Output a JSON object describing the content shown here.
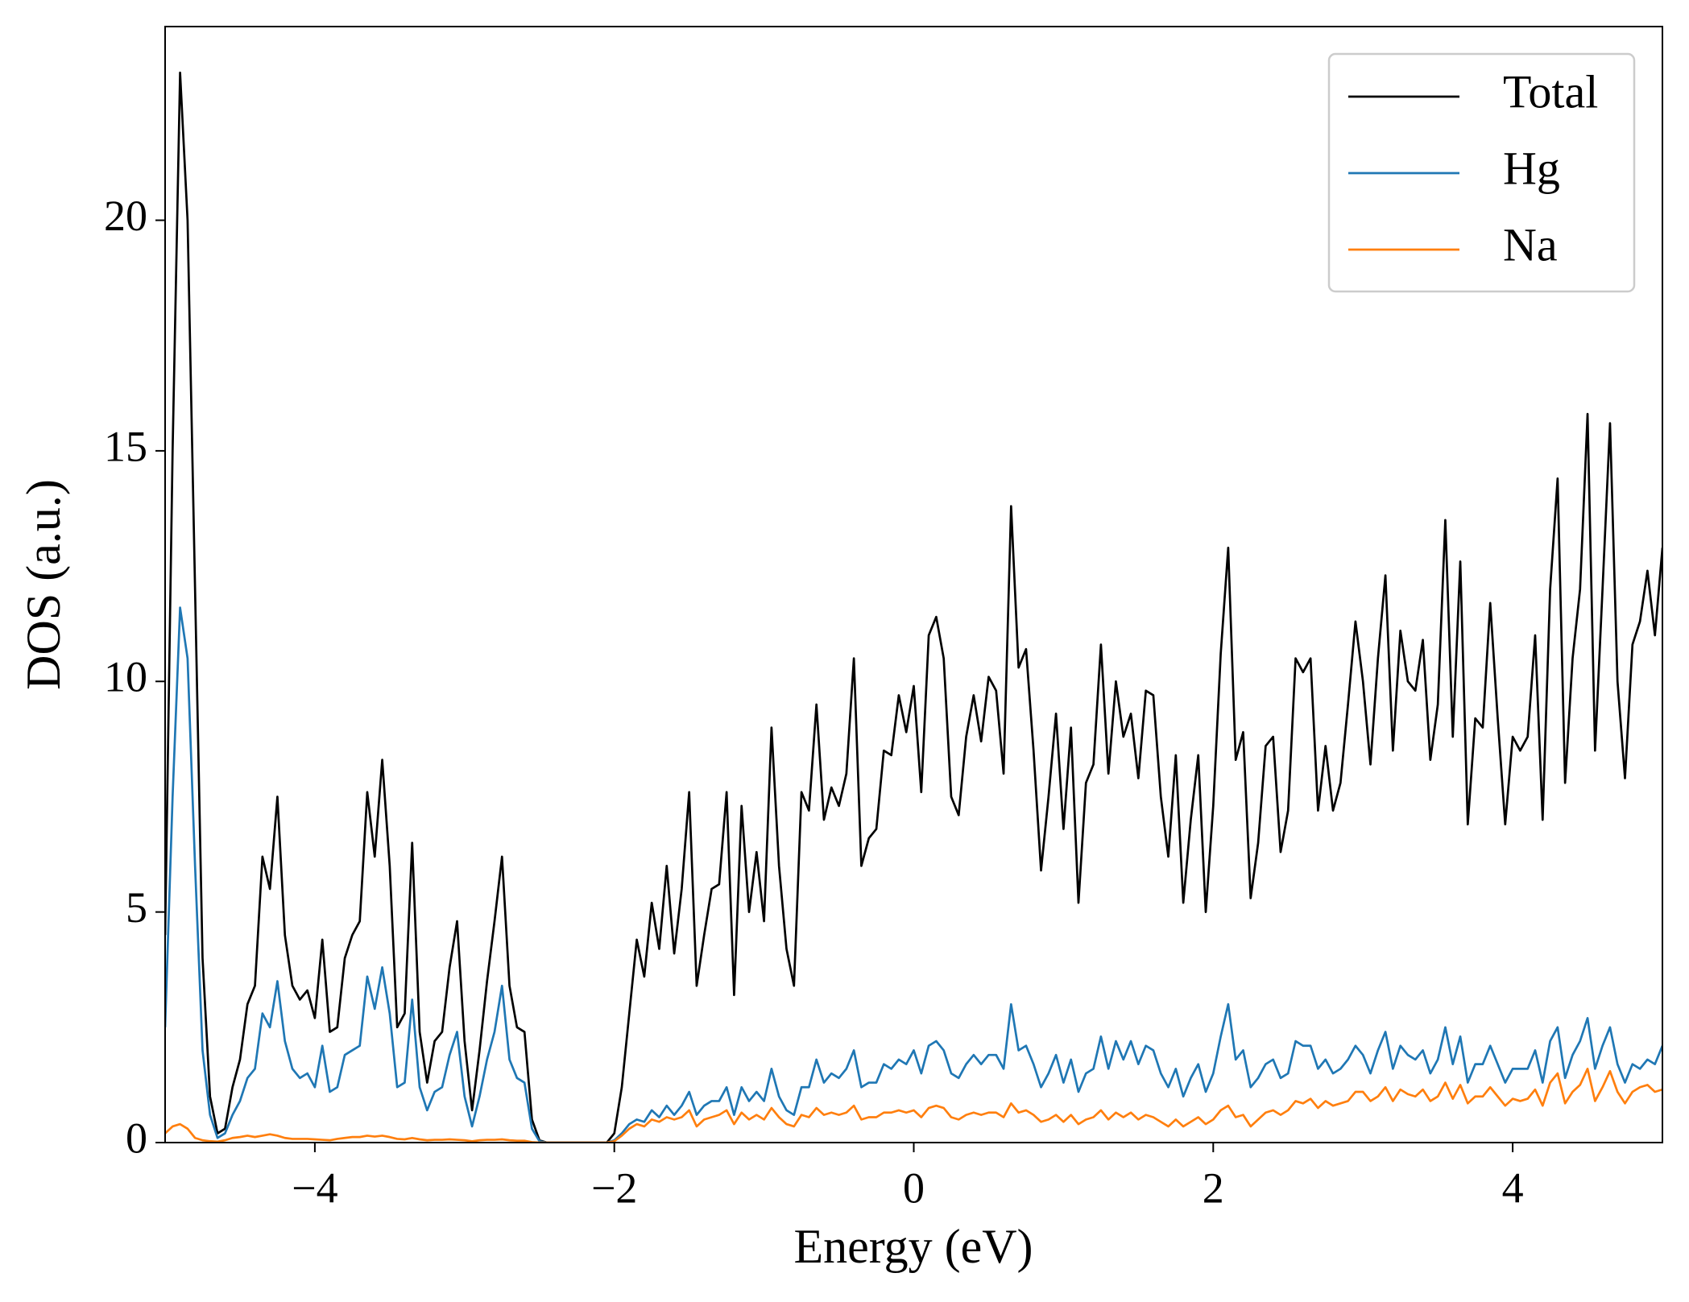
{
  "chart_data": {
    "type": "line",
    "xlabel": "Energy (eV)",
    "ylabel": "DOS (a.u.)",
    "xlim": [
      -5,
      5
    ],
    "ylim": [
      0,
      24.2
    ],
    "xticks": [
      {
        "value": -4,
        "label": "−4"
      },
      {
        "value": -2,
        "label": "−2"
      },
      0,
      2,
      4
    ],
    "yticks": [
      0,
      5,
      10,
      15,
      20
    ],
    "legend": "upper right",
    "x": [
      -5,
      -4.95,
      -4.9,
      -4.85,
      -4.8,
      -4.75,
      -4.7,
      -4.65,
      -4.6,
      -4.55,
      -4.5,
      -4.45,
      -4.4,
      -4.35,
      -4.3,
      -4.25,
      -4.2,
      -4.15,
      -4.1,
      -4.05,
      -4,
      -3.95,
      -3.9,
      -3.85,
      -3.8,
      -3.75,
      -3.7,
      -3.65,
      -3.6,
      -3.55,
      -3.5,
      -3.45,
      -3.4,
      -3.35,
      -3.3,
      -3.25,
      -3.2,
      -3.15,
      -3.1,
      -3.05,
      -3,
      -2.95,
      -2.9,
      -2.85,
      -2.8,
      -2.75,
      -2.7,
      -2.65,
      -2.6,
      -2.55,
      -2.5,
      -2.45,
      -2.4,
      -2.35,
      -2.3,
      -2.25,
      -2.2,
      -2.15,
      -2.1,
      -2.05,
      -2,
      -1.95,
      -1.9,
      -1.85,
      -1.8,
      -1.75,
      -1.7,
      -1.65,
      -1.6,
      -1.55,
      -1.5,
      -1.45,
      -1.4,
      -1.35,
      -1.3,
      -1.25,
      -1.2,
      -1.15,
      -1.1,
      -1.05,
      -1,
      -0.95,
      -0.9,
      -0.85,
      -0.8,
      -0.75,
      -0.7,
      -0.65,
      -0.6,
      -0.55,
      -0.5,
      -0.45,
      -0.4,
      -0.35,
      -0.3,
      -0.25,
      -0.2,
      -0.15,
      -0.1,
      -0.05,
      0,
      0.05,
      0.1,
      0.15,
      0.2,
      0.25,
      0.3,
      0.35,
      0.4,
      0.45,
      0.5,
      0.55,
      0.6,
      0.65,
      0.7,
      0.75,
      0.8,
      0.85,
      0.9,
      0.95,
      1,
      1.05,
      1.1,
      1.15,
      1.2,
      1.25,
      1.3,
      1.35,
      1.4,
      1.45,
      1.5,
      1.55,
      1.6,
      1.65,
      1.7,
      1.75,
      1.8,
      1.85,
      1.9,
      1.95,
      2,
      2.05,
      2.1,
      2.15,
      2.2,
      2.25,
      2.3,
      2.35,
      2.4,
      2.45,
      2.5,
      2.55,
      2.6,
      2.65,
      2.7,
      2.75,
      2.8,
      2.85,
      2.9,
      2.95,
      3,
      3.05,
      3.1,
      3.15,
      3.2,
      3.25,
      3.3,
      3.35,
      3.4,
      3.45,
      3.5,
      3.55,
      3.6,
      3.65,
      3.7,
      3.75,
      3.8,
      3.85,
      3.9,
      3.95,
      4,
      4.05,
      4.1,
      4.15,
      4.2,
      4.25,
      4.3,
      4.35,
      4.4,
      4.45,
      4.5,
      4.55,
      4.6,
      4.65,
      4.7,
      4.75,
      4.8,
      4.85,
      4.9,
      4.95,
      5
    ],
    "series": [
      {
        "name": "Total",
        "color": "#000000",
        "values": [
          4.5,
          15,
          23.2,
          20,
          12,
          4,
          1.0,
          0.2,
          0.3,
          1.2,
          1.8,
          3.0,
          3.4,
          6.2,
          5.5,
          7.5,
          4.5,
          3.4,
          3.1,
          3.3,
          2.7,
          4.4,
          2.4,
          2.5,
          4.0,
          4.5,
          4.8,
          7.6,
          6.2,
          8.3,
          6.0,
          2.5,
          2.8,
          6.5,
          2.4,
          1.3,
          2.2,
          2.4,
          3.8,
          4.8,
          2.2,
          0.7,
          2.0,
          3.5,
          4.8,
          6.2,
          3.4,
          2.5,
          2.4,
          0.5,
          0.05,
          0,
          0,
          0,
          0,
          0,
          0,
          0,
          0,
          0,
          0.2,
          1.2,
          2.8,
          4.4,
          3.6,
          5.2,
          4.2,
          6.0,
          4.1,
          5.5,
          7.6,
          3.4,
          4.5,
          5.5,
          5.6,
          7.6,
          3.2,
          7.3,
          5.0,
          6.3,
          4.8,
          9.0,
          6.0,
          4.2,
          3.4,
          7.6,
          7.2,
          9.5,
          7.0,
          7.7,
          7.3,
          8.0,
          10.5,
          6.0,
          6.6,
          6.8,
          8.5,
          8.4,
          9.7,
          8.9,
          9.9,
          7.6,
          11.0,
          11.4,
          10.5,
          7.5,
          7.1,
          8.8,
          9.7,
          8.7,
          10.1,
          9.8,
          8.0,
          13.8,
          10.3,
          10.7,
          8.5,
          5.9,
          7.5,
          9.3,
          6.8,
          9.0,
          5.2,
          7.8,
          8.2,
          10.8,
          8.0,
          10.0,
          8.8,
          9.3,
          7.9,
          9.8,
          9.7,
          7.5,
          6.2,
          8.4,
          5.2,
          7.0,
          8.4,
          5.0,
          7.3,
          10.6,
          12.9,
          8.3,
          8.9,
          5.3,
          6.5,
          8.6,
          8.8,
          6.3,
          7.2,
          10.5,
          10.2,
          10.5,
          7.2,
          8.6,
          7.2,
          7.8,
          9.5,
          11.3,
          10.0,
          8.2,
          10.5,
          12.3,
          8.5,
          11.1,
          10.0,
          9.8,
          10.9,
          8.3,
          9.5,
          13.5,
          8.8,
          12.6,
          6.9,
          9.2,
          9.0,
          11.7,
          9.2,
          6.9,
          8.8,
          8.5,
          8.8,
          11.0,
          7.0,
          12.0,
          14.4,
          7.8,
          10.5,
          12.0,
          15.8,
          8.5,
          12.0,
          15.6,
          10.0,
          7.9,
          10.8,
          11.3,
          12.4,
          11.0,
          12.9
        ]
      },
      {
        "name": "Hg",
        "color": "#1f77b4",
        "values": [
          2.5,
          7.5,
          11.6,
          10.5,
          6.0,
          2.0,
          0.6,
          0.1,
          0.2,
          0.6,
          0.9,
          1.4,
          1.6,
          2.8,
          2.5,
          3.5,
          2.2,
          1.6,
          1.4,
          1.5,
          1.2,
          2.1,
          1.1,
          1.2,
          1.9,
          2.0,
          2.1,
          3.6,
          2.9,
          3.8,
          2.8,
          1.2,
          1.3,
          3.1,
          1.2,
          0.7,
          1.1,
          1.2,
          1.9,
          2.4,
          1.0,
          0.35,
          1.0,
          1.8,
          2.4,
          3.4,
          1.8,
          1.4,
          1.3,
          0.3,
          0.03,
          0,
          0,
          0,
          0,
          0,
          0,
          0,
          0,
          0,
          0.05,
          0.2,
          0.4,
          0.5,
          0.45,
          0.7,
          0.55,
          0.8,
          0.6,
          0.8,
          1.1,
          0.6,
          0.8,
          0.9,
          0.9,
          1.2,
          0.6,
          1.2,
          0.9,
          1.1,
          0.9,
          1.6,
          1.0,
          0.7,
          0.6,
          1.2,
          1.2,
          1.8,
          1.3,
          1.5,
          1.4,
          1.6,
          2.0,
          1.2,
          1.3,
          1.3,
          1.7,
          1.6,
          1.8,
          1.7,
          2.0,
          1.5,
          2.1,
          2.2,
          2.0,
          1.5,
          1.4,
          1.7,
          1.9,
          1.7,
          1.9,
          1.9,
          1.6,
          3.0,
          2.0,
          2.1,
          1.7,
          1.2,
          1.5,
          1.9,
          1.3,
          1.8,
          1.1,
          1.5,
          1.6,
          2.3,
          1.6,
          2.2,
          1.8,
          2.2,
          1.7,
          2.1,
          2.0,
          1.5,
          1.2,
          1.6,
          1.0,
          1.4,
          1.7,
          1.1,
          1.5,
          2.3,
          3.0,
          1.8,
          2.0,
          1.2,
          1.4,
          1.7,
          1.8,
          1.4,
          1.5,
          2.2,
          2.1,
          2.1,
          1.6,
          1.8,
          1.5,
          1.6,
          1.8,
          2.1,
          1.9,
          1.5,
          2.0,
          2.4,
          1.6,
          2.1,
          1.9,
          1.8,
          2.0,
          1.5,
          1.8,
          2.5,
          1.7,
          2.3,
          1.3,
          1.7,
          1.7,
          2.1,
          1.7,
          1.3,
          1.6,
          1.6,
          1.6,
          2.0,
          1.3,
          2.2,
          2.5,
          1.4,
          1.9,
          2.2,
          2.7,
          1.6,
          2.1,
          2.5,
          1.7,
          1.3,
          1.7,
          1.6,
          1.8,
          1.7,
          2.1
        ]
      },
      {
        "name": "Na",
        "color": "#ff7f0e",
        "values": [
          0.2,
          0.35,
          0.4,
          0.3,
          0.1,
          0.05,
          0.03,
          0.02,
          0.05,
          0.1,
          0.12,
          0.15,
          0.12,
          0.15,
          0.18,
          0.15,
          0.1,
          0.08,
          0.08,
          0.08,
          0.07,
          0.06,
          0.05,
          0.08,
          0.1,
          0.12,
          0.12,
          0.15,
          0.13,
          0.15,
          0.12,
          0.08,
          0.07,
          0.1,
          0.07,
          0.05,
          0.06,
          0.06,
          0.07,
          0.06,
          0.05,
          0.03,
          0.05,
          0.06,
          0.06,
          0.07,
          0.05,
          0.04,
          0.04,
          0.01,
          0,
          0,
          0,
          0,
          0,
          0,
          0,
          0,
          0,
          0,
          0.03,
          0.15,
          0.3,
          0.4,
          0.35,
          0.5,
          0.45,
          0.55,
          0.5,
          0.55,
          0.7,
          0.35,
          0.5,
          0.55,
          0.6,
          0.7,
          0.4,
          0.65,
          0.5,
          0.6,
          0.5,
          0.75,
          0.55,
          0.4,
          0.35,
          0.6,
          0.55,
          0.75,
          0.6,
          0.65,
          0.6,
          0.65,
          0.8,
          0.5,
          0.55,
          0.55,
          0.65,
          0.65,
          0.7,
          0.65,
          0.7,
          0.55,
          0.75,
          0.8,
          0.75,
          0.55,
          0.5,
          0.6,
          0.65,
          0.6,
          0.65,
          0.65,
          0.55,
          0.85,
          0.65,
          0.7,
          0.6,
          0.45,
          0.5,
          0.6,
          0.45,
          0.6,
          0.4,
          0.5,
          0.55,
          0.7,
          0.5,
          0.65,
          0.55,
          0.65,
          0.5,
          0.6,
          0.55,
          0.45,
          0.35,
          0.5,
          0.35,
          0.45,
          0.55,
          0.4,
          0.5,
          0.7,
          0.8,
          0.55,
          0.6,
          0.35,
          0.5,
          0.65,
          0.7,
          0.6,
          0.7,
          0.9,
          0.85,
          0.95,
          0.75,
          0.9,
          0.8,
          0.85,
          0.9,
          1.1,
          1.1,
          0.9,
          1.0,
          1.2,
          0.9,
          1.15,
          1.05,
          1.0,
          1.15,
          0.9,
          1.0,
          1.3,
          0.95,
          1.25,
          0.85,
          1.0,
          1.0,
          1.2,
          1.0,
          0.8,
          0.95,
          0.9,
          0.95,
          1.15,
          0.8,
          1.3,
          1.5,
          0.85,
          1.1,
          1.25,
          1.6,
          0.9,
          1.2,
          1.55,
          1.1,
          0.85,
          1.1,
          1.2,
          1.25,
          1.1,
          1.15
        ]
      }
    ]
  }
}
